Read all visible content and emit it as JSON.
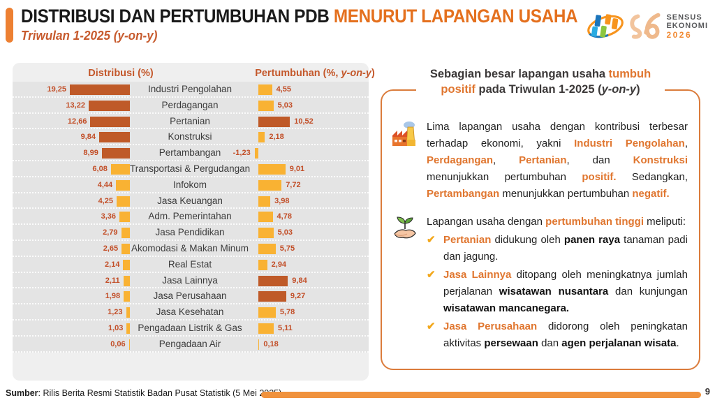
{
  "header": {
    "title_black": "DISTRIBUSI DAN PERTUMBUHAN PDB ",
    "title_orange": "MENURUT LAPANGAN USAHA",
    "subtitle": "Triwulan 1-2025 (y-on-y)",
    "logo": {
      "sensus_line1": "SENSUS",
      "sensus_line2": "EKONOMI",
      "sensus_year": "2026"
    }
  },
  "chart_data": {
    "type": "bar",
    "title": "Distribusi dan Pertumbuhan PDB menurut Lapangan Usaha, Triwulan 1-2025 (y-on-y)",
    "left_header": "Distribusi (%)",
    "right_header_rich": [
      [
        "n",
        "Pertumbuhan (%, "
      ],
      [
        "i",
        "y-on-y"
      ],
      [
        "n",
        ")"
      ]
    ],
    "grid": false,
    "legend_position": "none",
    "categories": [
      "Industri Pengolahan",
      "Perdagangan",
      "Pertanian",
      "Konstruksi",
      "Pertambangan",
      "Transportasi & Pergudangan",
      "Infokom",
      "Jasa Keuangan",
      "Adm. Pemerintahan",
      "Jasa Pendidikan",
      "Akomodasi & Makan Minum",
      "Real Estat",
      "Jasa Lainnya",
      "Jasa Perusahaan",
      "Jasa Kesehatan",
      "Pengadaan Listrik & Gas",
      "Pengadaan Air"
    ],
    "series": [
      {
        "name": "Distribusi (%)",
        "values": [
          19.25,
          13.22,
          12.66,
          9.84,
          8.99,
          6.08,
          4.44,
          4.25,
          3.36,
          2.79,
          2.65,
          2.14,
          2.11,
          1.98,
          1.23,
          1.03,
          0.06
        ],
        "labels": [
          "19,25",
          "13,22",
          "12,66",
          "9,84",
          "8,99",
          "6,08",
          "4,44",
          "4,25",
          "3,36",
          "2,79",
          "2,65",
          "2,14",
          "2,11",
          "1,98",
          "1,23",
          "1,03",
          "0,06"
        ],
        "highlight": [
          true,
          true,
          true,
          true,
          true,
          false,
          false,
          false,
          false,
          false,
          false,
          false,
          false,
          false,
          false,
          false,
          false
        ]
      },
      {
        "name": "Pertumbuhan (%, y-on-y)",
        "values": [
          4.55,
          5.03,
          10.52,
          2.18,
          -1.23,
          9.01,
          7.72,
          3.98,
          4.78,
          5.03,
          5.75,
          2.94,
          9.84,
          9.27,
          5.78,
          5.11,
          0.18
        ],
        "labels": [
          "4,55",
          "5,03",
          "10,52",
          "2,18",
          "-1,23",
          "9,01",
          "7,72",
          "3,98",
          "4,78",
          "5,03",
          "5,75",
          "2,94",
          "9,84",
          "9,27",
          "5,78",
          "5,11",
          "0,18"
        ],
        "highlight": [
          false,
          false,
          true,
          false,
          false,
          false,
          false,
          false,
          false,
          false,
          false,
          false,
          true,
          true,
          false,
          false,
          false
        ]
      }
    ]
  },
  "insight": {
    "heading": [
      [
        "n",
        "Sebagian besar lapangan usaha "
      ],
      [
        "o",
        "tumbuh positif"
      ],
      [
        "n",
        " pada Triwulan 1-2025 ("
      ],
      [
        "i",
        "y-on-y"
      ],
      [
        "n",
        ")"
      ]
    ],
    "para1": [
      [
        "n",
        "Lima lapangan usaha dengan kontribusi terbesar terhadap ekonomi, yakni "
      ],
      [
        "o",
        "Industri Pengolahan"
      ],
      [
        "n",
        ", "
      ],
      [
        "o",
        "Perdagangan"
      ],
      [
        "n",
        ", "
      ],
      [
        "o",
        "Pertanian"
      ],
      [
        "n",
        ", dan "
      ],
      [
        "o",
        "Konstruksi"
      ],
      [
        "n",
        " menunjukkan pertumbuhan "
      ],
      [
        "o",
        "positif."
      ],
      [
        "n",
        " Sedangkan, "
      ],
      [
        "o",
        "Pertambangan"
      ],
      [
        "n",
        " menunjukkan pertumbuhan "
      ],
      [
        "o",
        "negatif."
      ]
    ],
    "section2_intro": [
      [
        "n",
        "Lapangan usaha dengan "
      ],
      [
        "o",
        "pertumbuhan tinggi"
      ],
      [
        "n",
        " meliputi:"
      ]
    ],
    "bullets": [
      [
        [
          "o",
          "Pertanian"
        ],
        [
          "n",
          " didukung oleh "
        ],
        [
          "b",
          "panen raya"
        ],
        [
          "n",
          " tanaman padi dan jagung."
        ]
      ],
      [
        [
          "o",
          "Jasa Lainnya"
        ],
        [
          "n",
          " ditopang oleh meningkatnya jumlah perjalanan "
        ],
        [
          "b",
          "wisatawan nusantara"
        ],
        [
          "n",
          " dan kunjungan "
        ],
        [
          "b",
          "wisatawan mancanegara."
        ]
      ],
      [
        [
          "o",
          "Jasa Perusahaan"
        ],
        [
          "n",
          " didorong oleh peningkatan aktivitas "
        ],
        [
          "b",
          "persewaan"
        ],
        [
          "n",
          " dan "
        ],
        [
          "b",
          "agen perjalanan wisata"
        ],
        [
          "n",
          "."
        ]
      ]
    ],
    "check_glyph": "✔"
  },
  "footer": {
    "source_bold": "Sumber",
    "source_rest": ": Rilis Berita Resmi Statistik Badan Pusat Statistik (5 Mei 2025)",
    "page": "9"
  },
  "colors": {
    "bar-dark": "#BF5A28",
    "bar-yellow": "#F9B233",
    "value-text": "#C24E27",
    "chart-header": "#C4582B",
    "title-orange": "#E4701E",
    "subtitle-orange": "#C75B2E",
    "accent-orange": "#ED8032",
    "panel-border": "#DB7C3C",
    "rich-orange": "#E0762F",
    "check-orange": "#F2A71B",
    "footer-bar": "#F0923D",
    "panel-bg": "#EFEFEF",
    "row-bg": "#E4E4E4",
    "sensus-gray": "#58595B",
    "sensus-orange": "#F18A33"
  }
}
